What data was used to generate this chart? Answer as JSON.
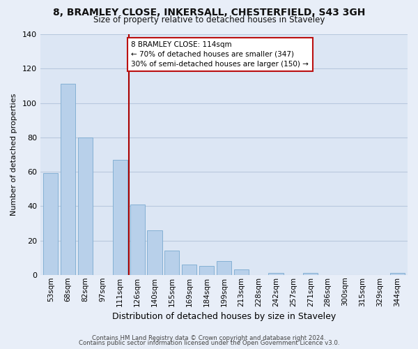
{
  "title_line1": "8, BRAMLEY CLOSE, INKERSALL, CHESTERFIELD, S43 3GH",
  "title_line2": "Size of property relative to detached houses in Staveley",
  "xlabel": "Distribution of detached houses by size in Staveley",
  "ylabel": "Number of detached properties",
  "bar_labels": [
    "53sqm",
    "68sqm",
    "82sqm",
    "97sqm",
    "111sqm",
    "126sqm",
    "140sqm",
    "155sqm",
    "169sqm",
    "184sqm",
    "199sqm",
    "213sqm",
    "228sqm",
    "242sqm",
    "257sqm",
    "271sqm",
    "286sqm",
    "300sqm",
    "315sqm",
    "329sqm",
    "344sqm"
  ],
  "bar_values": [
    59,
    111,
    80,
    0,
    67,
    41,
    26,
    14,
    6,
    5,
    8,
    3,
    0,
    1,
    0,
    1,
    0,
    0,
    0,
    0,
    1
  ],
  "bar_color": "#b8d0ea",
  "bar_edge_color": "#7aaad0",
  "vline_index": 4,
  "vline_color": "#aa0000",
  "annotation_text": "8 BRAMLEY CLOSE: 114sqm\n← 70% of detached houses are smaller (347)\n30% of semi-detached houses are larger (150) →",
  "annotation_box_color": "#ffffff",
  "annotation_box_edge": "#bb1111",
  "ylim": [
    0,
    140
  ],
  "yticks": [
    0,
    20,
    40,
    60,
    80,
    100,
    120,
    140
  ],
  "footer_line1": "Contains HM Land Registry data © Crown copyright and database right 2024.",
  "footer_line2": "Contains public sector information licensed under the Open Government Licence v3.0.",
  "bg_color": "#e8eef8",
  "plot_bg_color": "#dce6f4",
  "grid_color": "#b8c8de"
}
